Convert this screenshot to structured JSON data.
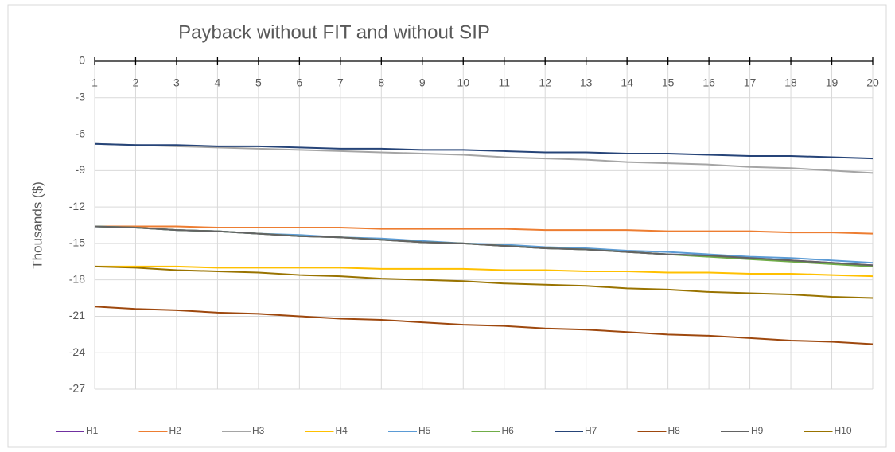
{
  "chart_data": {
    "type": "line",
    "title": "Payback without FIT and without SIP",
    "y_label": "Thousands ($)",
    "x": [
      1,
      2,
      3,
      4,
      5,
      6,
      7,
      8,
      9,
      10,
      11,
      12,
      13,
      14,
      15,
      16,
      17,
      18,
      19,
      20
    ],
    "xlim": [
      1,
      20
    ],
    "xticks": [
      1,
      2,
      3,
      4,
      5,
      6,
      7,
      8,
      9,
      10,
      11,
      12,
      13,
      14,
      15,
      16,
      17,
      18,
      19,
      20
    ],
    "ylim": [
      -27,
      0
    ],
    "yticks": [
      0,
      -3,
      -6,
      -9,
      -12,
      -15,
      -18,
      -21,
      -24,
      -27
    ],
    "grid": true,
    "legend": "bottom",
    "series": [
      {
        "name": "H1",
        "color": "#7030a0",
        "values": [
          -13.6,
          -13.7,
          -13.9,
          -14.0,
          -14.2,
          -14.4,
          -14.5,
          -14.7,
          -14.9,
          -15.0,
          -15.2,
          -15.4,
          -15.5,
          -15.7,
          -15.9,
          -16.0,
          -16.2,
          -16.4,
          -16.6,
          -16.8
        ]
      },
      {
        "name": "H2",
        "color": "#ed7d31",
        "values": [
          -13.6,
          -13.6,
          -13.6,
          -13.7,
          -13.7,
          -13.7,
          -13.7,
          -13.8,
          -13.8,
          -13.8,
          -13.8,
          -13.9,
          -13.9,
          -13.9,
          -14.0,
          -14.0,
          -14.0,
          -14.1,
          -14.1,
          -14.2
        ]
      },
      {
        "name": "H3",
        "color": "#a5a5a5",
        "values": [
          -6.8,
          -6.9,
          -7.0,
          -7.1,
          -7.2,
          -7.3,
          -7.4,
          -7.5,
          -7.6,
          -7.7,
          -7.9,
          -8.0,
          -8.1,
          -8.3,
          -8.4,
          -8.5,
          -8.7,
          -8.8,
          -9.0,
          -9.2
        ]
      },
      {
        "name": "H4",
        "color": "#ffc000",
        "values": [
          -16.9,
          -16.9,
          -16.9,
          -17.0,
          -17.0,
          -17.0,
          -17.0,
          -17.1,
          -17.1,
          -17.1,
          -17.2,
          -17.2,
          -17.3,
          -17.3,
          -17.4,
          -17.4,
          -17.5,
          -17.5,
          -17.6,
          -17.7
        ]
      },
      {
        "name": "H5",
        "color": "#5b9bd5",
        "values": [
          -13.6,
          -13.7,
          -13.9,
          -14.0,
          -14.2,
          -14.3,
          -14.5,
          -14.6,
          -14.8,
          -15.0,
          -15.1,
          -15.3,
          -15.4,
          -15.6,
          -15.7,
          -15.9,
          -16.1,
          -16.2,
          -16.4,
          -16.6
        ]
      },
      {
        "name": "H6",
        "color": "#70ad47",
        "values": [
          -13.6,
          -13.7,
          -13.9,
          -14.0,
          -14.2,
          -14.4,
          -14.5,
          -14.7,
          -14.9,
          -15.0,
          -15.2,
          -15.4,
          -15.5,
          -15.7,
          -15.9,
          -16.1,
          -16.3,
          -16.5,
          -16.7,
          -16.9
        ]
      },
      {
        "name": "H7",
        "color": "#264478",
        "values": [
          -6.8,
          -6.9,
          -6.9,
          -7.0,
          -7.0,
          -7.1,
          -7.2,
          -7.2,
          -7.3,
          -7.3,
          -7.4,
          -7.5,
          -7.5,
          -7.6,
          -7.6,
          -7.7,
          -7.8,
          -7.8,
          -7.9,
          -8.0
        ]
      },
      {
        "name": "H8",
        "color": "#9e480e",
        "values": [
          -20.2,
          -20.4,
          -20.5,
          -20.7,
          -20.8,
          -21.0,
          -21.2,
          -21.3,
          -21.5,
          -21.7,
          -21.8,
          -22.0,
          -22.1,
          -22.3,
          -22.5,
          -22.6,
          -22.8,
          -23.0,
          -23.1,
          -23.3
        ]
      },
      {
        "name": "H9",
        "color": "#636363",
        "values": [
          -13.6,
          -13.7,
          -13.9,
          -14.0,
          -14.2,
          -14.4,
          -14.5,
          -14.7,
          -14.9,
          -15.0,
          -15.2,
          -15.4,
          -15.5,
          -15.7,
          -15.9,
          -16.0,
          -16.2,
          -16.4,
          -16.6,
          -16.8
        ]
      },
      {
        "name": "H10",
        "color": "#997300",
        "values": [
          -16.9,
          -17.0,
          -17.2,
          -17.3,
          -17.4,
          -17.6,
          -17.7,
          -17.9,
          -18.0,
          -18.1,
          -18.3,
          -18.4,
          -18.5,
          -18.7,
          -18.8,
          -19.0,
          -19.1,
          -19.2,
          -19.4,
          -19.5
        ]
      }
    ]
  }
}
